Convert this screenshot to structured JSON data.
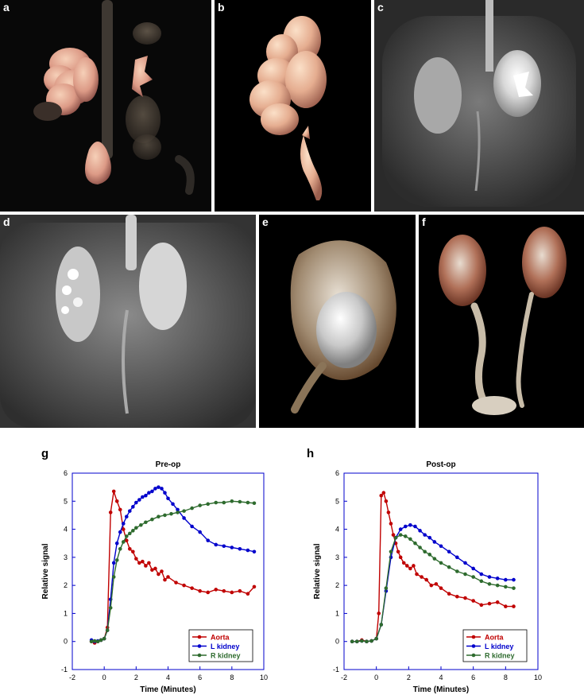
{
  "panels": {
    "a": "a",
    "b": "b",
    "c": "c",
    "d": "d",
    "e": "e",
    "f": "f",
    "g": "g",
    "h": "h"
  },
  "chart_data": [
    {
      "panel": "g",
      "type": "line",
      "title": "Pre-op",
      "xlabel": "Time (Minutes)",
      "ylabel": "Relative signal",
      "xlim": [
        -2,
        10
      ],
      "ylim": [
        -1,
        6
      ],
      "xticks": [
        "-2",
        "0",
        "2",
        "4",
        "6",
        "8",
        "10"
      ],
      "yticks": [
        "-1",
        "0",
        "1",
        "2",
        "3",
        "4",
        "5",
        "6"
      ],
      "legend_position": "bottom-right",
      "series": [
        {
          "name": "Aorta",
          "color": "#c00000",
          "x": [
            -0.8,
            -0.6,
            -0.4,
            -0.2,
            0.0,
            0.2,
            0.4,
            0.6,
            0.8,
            1.0,
            1.2,
            1.4,
            1.6,
            1.8,
            2.0,
            2.2,
            2.4,
            2.6,
            2.8,
            3.0,
            3.2,
            3.4,
            3.6,
            3.8,
            4.0,
            4.5,
            5.0,
            5.5,
            6.0,
            6.5,
            7.0,
            7.5,
            8.0,
            8.5,
            9.0,
            9.4
          ],
          "y": [
            0.0,
            -0.05,
            0.0,
            0.05,
            0.1,
            0.5,
            4.6,
            5.35,
            5.0,
            4.7,
            4.0,
            3.6,
            3.3,
            3.2,
            2.95,
            2.8,
            2.85,
            2.7,
            2.8,
            2.55,
            2.6,
            2.4,
            2.5,
            2.2,
            2.3,
            2.1,
            2.0,
            1.9,
            1.8,
            1.75,
            1.85,
            1.8,
            1.75,
            1.8,
            1.7,
            1.95
          ]
        },
        {
          "name": "L kidney",
          "color": "#0000cc",
          "x": [
            -0.8,
            -0.6,
            -0.4,
            -0.2,
            0.0,
            0.2,
            0.4,
            0.6,
            0.8,
            1.0,
            1.2,
            1.4,
            1.6,
            1.8,
            2.0,
            2.2,
            2.4,
            2.6,
            2.8,
            3.0,
            3.2,
            3.4,
            3.6,
            3.8,
            4.0,
            4.3,
            4.6,
            5.0,
            5.5,
            6.0,
            6.5,
            7.0,
            7.5,
            8.0,
            8.5,
            9.0,
            9.4
          ],
          "y": [
            0.05,
            0.0,
            0.02,
            0.05,
            0.1,
            0.4,
            1.5,
            2.8,
            3.5,
            3.9,
            4.2,
            4.45,
            4.65,
            4.8,
            4.95,
            5.05,
            5.15,
            5.2,
            5.3,
            5.35,
            5.45,
            5.5,
            5.45,
            5.3,
            5.1,
            4.9,
            4.7,
            4.4,
            4.1,
            3.9,
            3.6,
            3.45,
            3.4,
            3.35,
            3.3,
            3.25,
            3.2
          ]
        },
        {
          "name": "R kidney",
          "color": "#2e6b2e",
          "x": [
            -0.8,
            -0.6,
            -0.4,
            -0.2,
            0.0,
            0.2,
            0.4,
            0.6,
            0.8,
            1.0,
            1.2,
            1.4,
            1.6,
            1.8,
            2.0,
            2.3,
            2.6,
            3.0,
            3.4,
            3.8,
            4.2,
            4.6,
            5.0,
            5.5,
            6.0,
            6.5,
            7.0,
            7.5,
            8.0,
            8.5,
            9.0,
            9.4
          ],
          "y": [
            0.0,
            0.02,
            0.0,
            0.05,
            0.1,
            0.4,
            1.2,
            2.3,
            2.9,
            3.3,
            3.55,
            3.75,
            3.85,
            3.95,
            4.05,
            4.15,
            4.25,
            4.35,
            4.45,
            4.5,
            4.55,
            4.6,
            4.65,
            4.75,
            4.85,
            4.9,
            4.95,
            4.95,
            5.0,
            4.98,
            4.95,
            4.93
          ]
        }
      ]
    },
    {
      "panel": "h",
      "type": "line",
      "title": "Post-op",
      "xlabel": "Time (Minutes)",
      "ylabel": "Relative signal",
      "xlim": [
        -2,
        10
      ],
      "ylim": [
        -1,
        6
      ],
      "xticks": [
        "-2",
        "0",
        "2",
        "4",
        "6",
        "8",
        "10"
      ],
      "yticks": [
        "-1",
        "0",
        "1",
        "2",
        "3",
        "4",
        "5",
        "6"
      ],
      "legend_position": "bottom-right",
      "series": [
        {
          "name": "Aorta",
          "color": "#c00000",
          "x": [
            -1.5,
            -1.2,
            -0.9,
            -0.6,
            -0.3,
            0.0,
            0.15,
            0.3,
            0.45,
            0.6,
            0.75,
            0.9,
            1.05,
            1.2,
            1.35,
            1.5,
            1.7,
            1.9,
            2.1,
            2.3,
            2.5,
            2.8,
            3.1,
            3.4,
            3.7,
            4.0,
            4.5,
            5.0,
            5.5,
            6.0,
            6.5,
            7.0,
            7.5,
            8.0,
            8.5
          ],
          "y": [
            0.0,
            0.0,
            0.05,
            0.0,
            0.02,
            0.1,
            1.0,
            5.2,
            5.3,
            5.0,
            4.6,
            4.2,
            3.8,
            3.5,
            3.2,
            3.0,
            2.8,
            2.7,
            2.6,
            2.7,
            2.4,
            2.3,
            2.2,
            2.0,
            2.05,
            1.9,
            1.7,
            1.6,
            1.55,
            1.45,
            1.3,
            1.35,
            1.4,
            1.25,
            1.25
          ]
        },
        {
          "name": "L kidney",
          "color": "#0000cc",
          "x": [
            -1.5,
            -1.2,
            -0.9,
            -0.6,
            -0.3,
            0.0,
            0.3,
            0.6,
            0.9,
            1.2,
            1.5,
            1.8,
            2.1,
            2.4,
            2.7,
            3.0,
            3.3,
            3.6,
            4.0,
            4.5,
            5.0,
            5.5,
            6.0,
            6.5,
            7.0,
            7.5,
            8.0,
            8.5
          ],
          "y": [
            0.0,
            0.0,
            0.02,
            0.0,
            0.02,
            0.1,
            0.6,
            1.8,
            3.0,
            3.7,
            4.0,
            4.1,
            4.15,
            4.1,
            3.95,
            3.8,
            3.7,
            3.55,
            3.4,
            3.2,
            3.0,
            2.8,
            2.6,
            2.4,
            2.3,
            2.25,
            2.2,
            2.2
          ]
        },
        {
          "name": "R kidney",
          "color": "#2e6b2e",
          "x": [
            -1.5,
            -1.2,
            -0.9,
            -0.6,
            -0.3,
            0.0,
            0.3,
            0.6,
            0.9,
            1.2,
            1.5,
            1.8,
            2.1,
            2.4,
            2.7,
            3.0,
            3.3,
            3.6,
            4.0,
            4.5,
            5.0,
            5.5,
            6.0,
            6.5,
            7.0,
            7.5,
            8.0,
            8.5
          ],
          "y": [
            0.0,
            0.0,
            0.02,
            0.0,
            0.02,
            0.1,
            0.6,
            1.9,
            3.2,
            3.7,
            3.8,
            3.75,
            3.65,
            3.5,
            3.35,
            3.2,
            3.1,
            2.95,
            2.8,
            2.65,
            2.5,
            2.4,
            2.3,
            2.15,
            2.05,
            2.0,
            1.95,
            1.9
          ]
        }
      ]
    }
  ]
}
